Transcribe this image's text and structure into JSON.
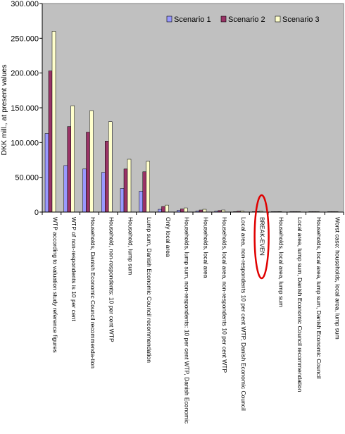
{
  "chart_data": {
    "type": "bar",
    "title": "",
    "xlabel": "",
    "ylabel": "DKK mill., at present values",
    "ylim": [
      0,
      300000
    ],
    "yticks": [
      "0",
      "50.000",
      "100.000",
      "150.000",
      "200.000",
      "250.000",
      "300.000"
    ],
    "ytick_values": [
      0,
      50000,
      100000,
      150000,
      200000,
      250000,
      300000
    ],
    "grid": false,
    "legend_position": "top-right",
    "plot_background": "#c0c0c0",
    "categories": [
      "WTP according to valuation study reference figures",
      "WTP of non-respondents is 10 per cent",
      "Households, Danish Economic Council recommenda-tion",
      "Household, non-respondents: 10 per cent WTP",
      "Household, lump sum",
      "Lump sum, Danish Economic Council recommendation",
      "Only local area",
      "Households, lump sum, non-respondents: 10 per cent WTP, Danish Economic",
      "Households, local area",
      "Households, local area, non-respondents 10 per cent WTP",
      "Local area, non-respondents 10 per cent WTP, Danish Economic Council",
      "BREAK-EVEN",
      "Households, local area, lump sum",
      "Local area, lump sum, Danish Economic Council recommendation",
      "Households, local area, lump sum, Danish Economic Council",
      "Worst case: households, local area, lump sum"
    ],
    "series": [
      {
        "name": "Scenario 1",
        "color": "#9999ff",
        "values": [
          113000,
          67000,
          62000,
          57000,
          34000,
          30000,
          4000,
          2500,
          1500,
          1200,
          600,
          400,
          300,
          200,
          100,
          80
        ]
      },
      {
        "name": "Scenario 2",
        "color": "#993366",
        "values": [
          203000,
          123000,
          115000,
          102000,
          62000,
          58000,
          8000,
          4500,
          3000,
          2200,
          1200,
          800,
          500,
          350,
          200,
          120
        ]
      },
      {
        "name": "Scenario 3",
        "color": "#ffffcc",
        "values": [
          260000,
          153000,
          146000,
          130000,
          76000,
          73000,
          10000,
          6000,
          4000,
          3000,
          1600,
          1100,
          700,
          450,
          250,
          150
        ]
      }
    ],
    "annotations": [
      {
        "type": "ellipse",
        "target_category": "BREAK-EVEN",
        "color": "#e00000"
      }
    ]
  }
}
